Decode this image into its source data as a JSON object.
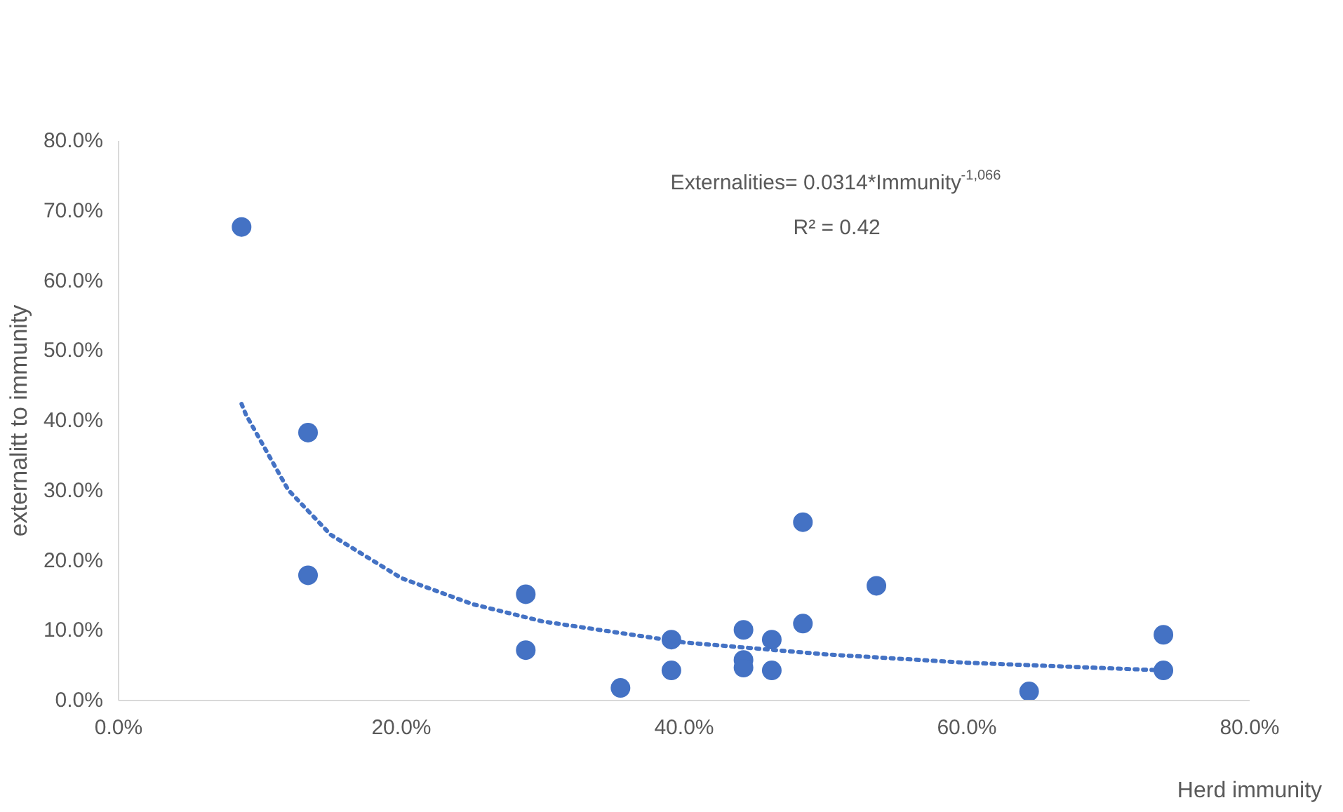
{
  "chart_data": {
    "type": "scatter",
    "xlabel": "Herd immunity",
    "ylabel": "externalitt to immunity",
    "annotations": [
      "Externalities= 0.0314*Immunity$^{-1,066}$",
      "R² = 0.42"
    ],
    "xlim": [
      0,
      80
    ],
    "ylim": [
      0,
      80
    ],
    "xticks": [
      {
        "value": 0,
        "label": "0.0%"
      },
      {
        "value": 20,
        "label": "20.0%"
      },
      {
        "value": 40,
        "label": "40.0%"
      },
      {
        "value": 60,
        "label": "60.0%"
      },
      {
        "value": 80,
        "label": "80.0%"
      }
    ],
    "yticks": [
      {
        "value": 0,
        "label": "0.0%"
      },
      {
        "value": 10,
        "label": "10.0%"
      },
      {
        "value": 20,
        "label": "20.0%"
      },
      {
        "value": 30,
        "label": "30.0%"
      },
      {
        "value": 40,
        "label": "40.0%"
      },
      {
        "value": 50,
        "label": "50.0%"
      },
      {
        "value": 60,
        "label": "60.0%"
      },
      {
        "value": 70,
        "label": "70.0%"
      },
      {
        "value": 80,
        "label": "80.0%"
      }
    ],
    "grid": false,
    "marker": "circle",
    "series": [
      {
        "type": "scatter",
        "color": "#4472c4",
        "x": [
          8.7,
          13.4,
          13.4,
          28.8,
          28.8,
          35.5,
          39.1,
          39.1,
          44.2,
          44.2,
          44.2,
          46.2,
          46.2,
          48.4,
          48.4,
          53.6,
          64.4,
          73.9,
          73.9
        ],
        "values": [
          67.7,
          38.3,
          17.9,
          15.2,
          7.2,
          1.8,
          8.7,
          4.3,
          10.1,
          5.8,
          4.7,
          8.7,
          4.3,
          25.5,
          11.0,
          16.4,
          1.3,
          9.4,
          4.3
        ]
      },
      {
        "type": "line",
        "color": "#4472c4",
        "line_style": "dotted",
        "marker": "none",
        "x": [
          8.7,
          9,
          12,
          15,
          20,
          25,
          30,
          40,
          50,
          60,
          74
        ],
        "values": [
          42.4,
          40.9,
          30.1,
          23.7,
          17.5,
          13.8,
          11.3,
          8.3,
          6.6,
          5.4,
          4.3
        ]
      }
    ]
  }
}
